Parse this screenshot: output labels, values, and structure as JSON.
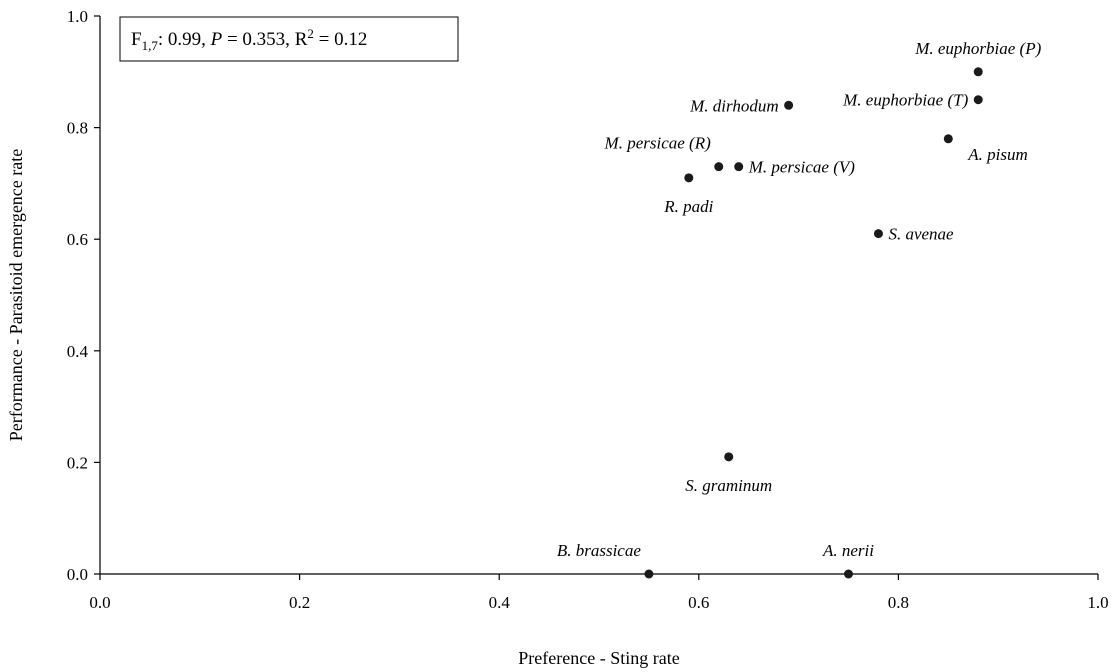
{
  "chart_data": {
    "type": "scatter",
    "xlabel": "Preference - Sting rate",
    "ylabel": "Performance - Parasitoid emergence rate",
    "xlim": [
      0.0,
      1.0
    ],
    "ylim": [
      0.0,
      1.0
    ],
    "x_ticks": [
      "0.0",
      "0.2",
      "0.4",
      "0.6",
      "0.8",
      "1.0"
    ],
    "y_ticks": [
      "0.0",
      "0.2",
      "0.4",
      "0.6",
      "0.8",
      "1.0"
    ],
    "grid": false,
    "legend": "none",
    "marker_color": "#1a1a1a",
    "stats_annotation": {
      "F": "F",
      "df": "1,7",
      "f_value": ": 0.99, ",
      "p_symbol": "P",
      "p_value": " = 0.353, ",
      "r_symbol": "R",
      "r_sup": "2",
      "r_value": " = 0.12"
    },
    "points": [
      {
        "label": "M. euphorbiae (P)",
        "x": 0.88,
        "y": 0.9,
        "label_pos": "above"
      },
      {
        "label": "M. euphorbiae (T)",
        "x": 0.88,
        "y": 0.85,
        "label_pos": "left"
      },
      {
        "label": "M. dirhodum",
        "x": 0.69,
        "y": 0.84,
        "label_pos": "left"
      },
      {
        "label": "A. pisum",
        "x": 0.85,
        "y": 0.78,
        "label_pos": "below-right"
      },
      {
        "label": "M. persicae (R)",
        "x": 0.62,
        "y": 0.73,
        "label_pos": "above-left"
      },
      {
        "label": "M. persicae (V)",
        "x": 0.64,
        "y": 0.73,
        "label_pos": "right"
      },
      {
        "label": "R. padi",
        "x": 0.59,
        "y": 0.71,
        "label_pos": "below"
      },
      {
        "label": "S. avenae",
        "x": 0.78,
        "y": 0.61,
        "label_pos": "right"
      },
      {
        "label": "S. graminum",
        "x": 0.63,
        "y": 0.21,
        "label_pos": "below"
      },
      {
        "label": "B. brassicae",
        "x": 0.55,
        "y": 0.0,
        "label_pos": "above-left"
      },
      {
        "label": "A. nerii",
        "x": 0.75,
        "y": 0.0,
        "label_pos": "above"
      }
    ]
  }
}
